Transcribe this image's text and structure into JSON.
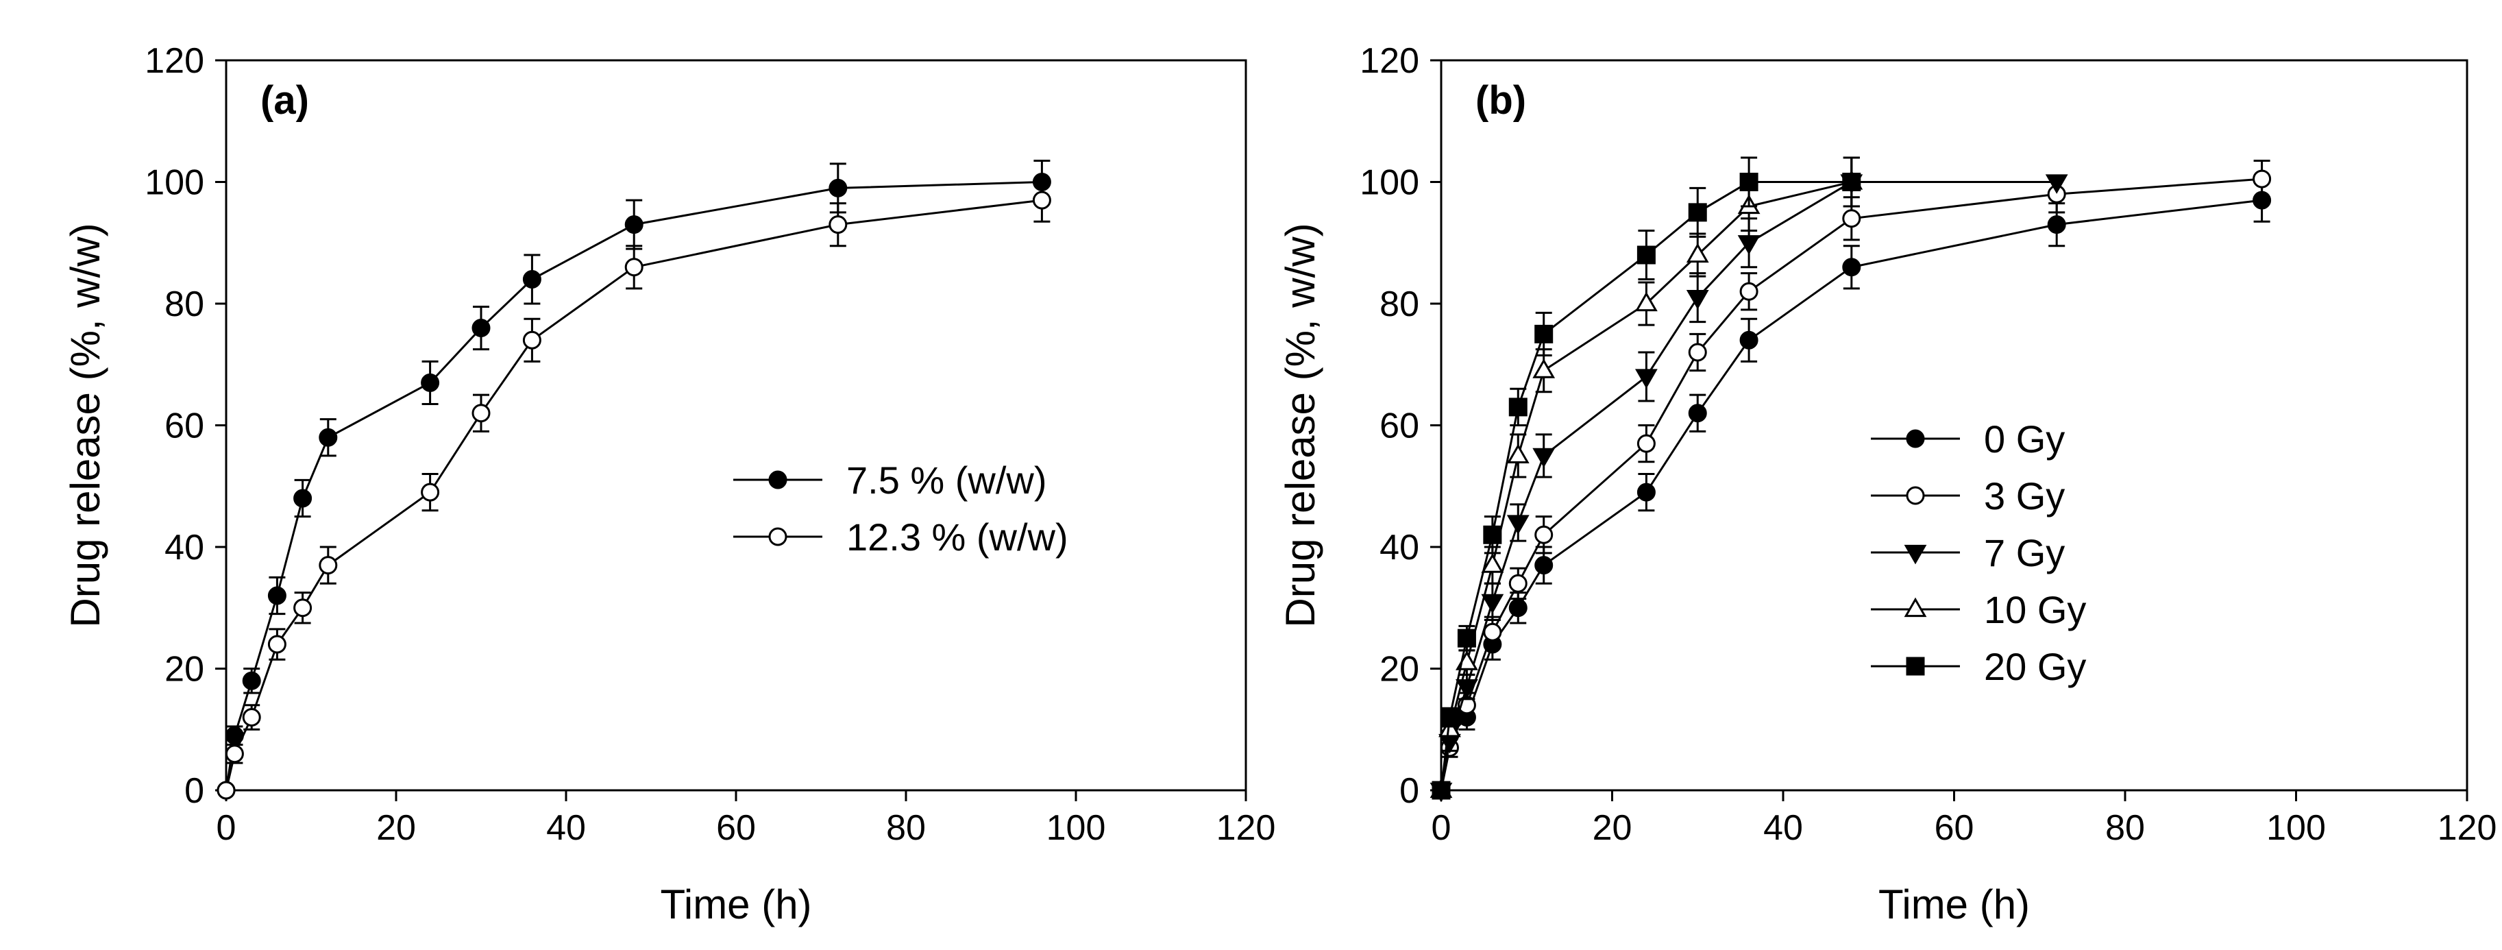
{
  "chart_data": [
    {
      "type": "line",
      "panel_label": "(a)",
      "xlabel": "Time (h)",
      "ylabel": "Drug release (%, w/w)",
      "xlim": [
        0,
        120
      ],
      "ylim": [
        0,
        120
      ],
      "xticks": [
        0,
        20,
        40,
        60,
        80,
        100,
        120
      ],
      "yticks": [
        0,
        20,
        40,
        60,
        80,
        100,
        120
      ],
      "grid": false,
      "legend_position": "center-right",
      "series": [
        {
          "name": "7.5 % (w/w)",
          "marker": "filled-circle",
          "x": [
            0,
            1,
            3,
            6,
            9,
            12,
            24,
            30,
            36,
            48,
            72,
            96
          ],
          "y": [
            0,
            9,
            18,
            32,
            48,
            58,
            67,
            76,
            84,
            93,
            99,
            100
          ],
          "err": [
            0,
            1.5,
            2,
            3,
            3,
            3,
            3.5,
            3.5,
            4,
            4,
            4,
            3.5
          ]
        },
        {
          "name": "12.3 % (w/w)",
          "marker": "open-circle",
          "x": [
            0,
            1,
            3,
            6,
            9,
            12,
            24,
            30,
            36,
            48,
            72,
            96
          ],
          "y": [
            0,
            6,
            12,
            24,
            30,
            37,
            49,
            62,
            74,
            86,
            93,
            97
          ],
          "err": [
            0,
            1.5,
            2,
            2.5,
            2.5,
            3,
            3,
            3,
            3.5,
            3.5,
            3.5,
            3.5
          ]
        }
      ]
    },
    {
      "type": "line",
      "panel_label": "(b)",
      "xlabel": "Time (h)",
      "ylabel": "Drug release (%, w/w)",
      "xlim": [
        0,
        120
      ],
      "ylim": [
        0,
        120
      ],
      "xticks": [
        0,
        20,
        40,
        60,
        80,
        100,
        120
      ],
      "yticks": [
        0,
        20,
        40,
        60,
        80,
        100,
        120
      ],
      "grid": false,
      "legend_position": "center-left",
      "series": [
        {
          "name": "0 Gy",
          "marker": "filled-circle",
          "x": [
            0,
            1,
            3,
            6,
            9,
            12,
            24,
            30,
            36,
            48,
            72,
            96
          ],
          "y": [
            0,
            9,
            12,
            24,
            30,
            37,
            49,
            62,
            74,
            86,
            93,
            97
          ],
          "err": [
            0,
            1.5,
            2,
            2.5,
            2.5,
            3,
            3,
            3,
            3.5,
            3.5,
            3.5,
            3.5
          ]
        },
        {
          "name": "3 Gy",
          "marker": "open-circle",
          "x": [
            0,
            1,
            3,
            6,
            9,
            12,
            24,
            30,
            36,
            48,
            72,
            96
          ],
          "y": [
            0,
            7,
            14,
            26,
            34,
            42,
            57,
            72,
            82,
            94,
            98,
            100.5
          ],
          "err": [
            0,
            1.5,
            2,
            2.5,
            2.5,
            3,
            3,
            3,
            3,
            3.5,
            3,
            3
          ]
        },
        {
          "name": "7 Gy",
          "marker": "filled-triangle-down",
          "x": [
            0,
            1,
            3,
            6,
            9,
            12,
            24,
            30,
            36,
            48,
            72
          ],
          "y": [
            0,
            8,
            17,
            31,
            44,
            55,
            68,
            81,
            90,
            100,
            100
          ],
          "err": [
            0,
            1.5,
            2,
            3,
            3,
            3.5,
            4,
            4,
            4,
            4,
            0
          ]
        },
        {
          "name": "10 Gy",
          "marker": "open-triangle-up",
          "x": [
            0,
            1,
            3,
            6,
            9,
            12,
            24,
            30,
            36,
            48
          ],
          "y": [
            0,
            10,
            21,
            37,
            55,
            69,
            80,
            88,
            96,
            100
          ],
          "err": [
            0,
            1.5,
            2,
            3,
            3.5,
            3.5,
            3.5,
            3.5,
            4,
            4
          ]
        },
        {
          "name": "20 Gy",
          "marker": "filled-square",
          "x": [
            0,
            1,
            3,
            6,
            9,
            12,
            24,
            30,
            36,
            48
          ],
          "y": [
            0,
            12,
            25,
            42,
            63,
            75,
            88,
            95,
            100,
            100
          ],
          "err": [
            0,
            1.5,
            2,
            3,
            3,
            3.5,
            4,
            4,
            4,
            4
          ]
        }
      ]
    }
  ]
}
